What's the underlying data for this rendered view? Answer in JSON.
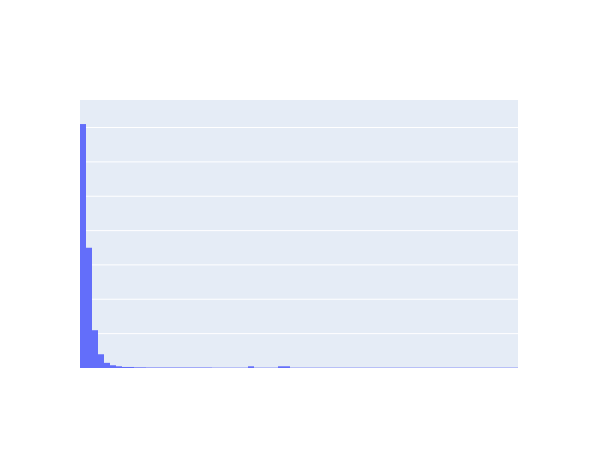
{
  "chart_data": {
    "type": "bar",
    "title": "",
    "xlabel": "",
    "ylabel": "",
    "grid": true,
    "ylim": [
      0,
      7.8
    ],
    "y_gridlines": [
      1,
      2,
      3,
      4,
      5,
      6,
      7
    ],
    "bins": {
      "start": 0,
      "width": 1,
      "count": 73
    },
    "values": [
      7.1,
      3.5,
      1.1,
      0.4,
      0.15,
      0.08,
      0.05,
      0.03,
      0.03,
      0.02,
      0.02,
      0.015,
      0.015,
      0.015,
      0.015,
      0.015,
      0.015,
      0.015,
      0.015,
      0.015,
      0.015,
      0.015,
      0.01,
      0.01,
      0.01,
      0.01,
      0.01,
      0.01,
      0.05,
      0.01,
      0.01,
      0.01,
      0.01,
      0.05,
      0.05,
      0.01,
      0.01,
      0.01,
      0.01,
      0.01,
      0.01,
      0.01,
      0.01,
      0.01,
      0.01,
      0.01,
      0.01,
      0.01,
      0.01,
      0.01,
      0.01,
      0.01,
      0.01,
      0.01,
      0.01,
      0.01,
      0.01,
      0.01,
      0.01,
      0.01,
      0.01,
      0.01,
      0.01,
      0.01,
      0.01,
      0.01,
      0.01,
      0.01,
      0.01,
      0.01,
      0.01,
      0.01,
      0.01
    ],
    "colors": {
      "plot_background": "#E5ECF6",
      "bar": "#636EFA",
      "grid": "#FFFFFF"
    }
  }
}
